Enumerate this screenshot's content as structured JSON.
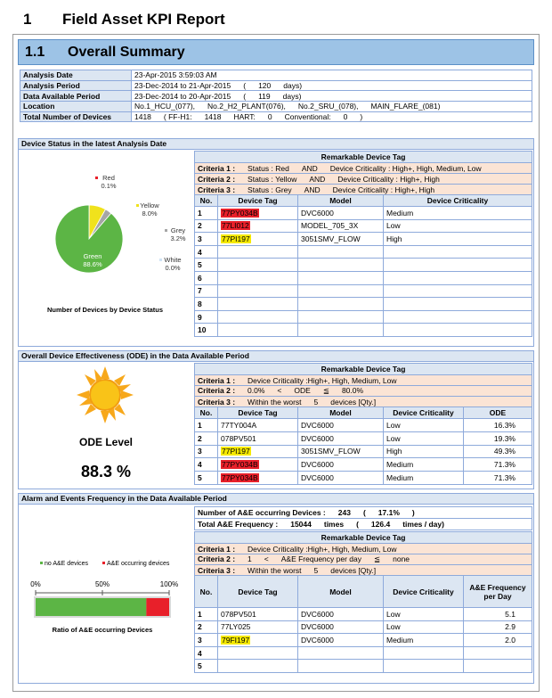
{
  "header": {
    "number": "1",
    "title": "Field Asset KPI Report"
  },
  "section": {
    "number": "1.1",
    "title": "Overall Summary"
  },
  "summary": {
    "rows": [
      [
        "Analysis Date",
        "23-Apr-2015 3:59:03 AM"
      ],
      [
        "Analysis Period",
        "23-Dec-2014 to 21-Apr-2015",
        "(",
        "120",
        "days)"
      ],
      [
        "Data Available Period",
        "23-Dec-2014 to 20-Apr-2015",
        "(",
        "119",
        "days)"
      ],
      [
        "Location",
        "No.1_HCU_(077),",
        "No.2_H2_PLANT(076),",
        "No.2_SRU_(078),",
        "MAIN_FLARE_(081)"
      ],
      [
        "Total Number of Devices",
        "1418",
        "( FF-H1:",
        "1418",
        "HART:",
        "0",
        "Conventional:",
        "0",
        ")"
      ]
    ]
  },
  "device_status": {
    "title": "Device Status in the latest Analysis Date",
    "remarkable": {
      "heading": "Remarkable Device Tag",
      "criteria": [
        [
          "Criteria 1 :",
          "Status : Red",
          "AND",
          "Device Criticality : High+, High, Medium, Low"
        ],
        [
          "Criteria 2 :",
          "Status : Yellow",
          "AND",
          "Device Criticality : High+, High"
        ],
        [
          "Criteria 3 :",
          "Status : Grey",
          "AND",
          "Device Criticality : High+, High"
        ]
      ],
      "columns": [
        "No.",
        "Device Tag",
        "Model",
        "Device Criticality"
      ],
      "rows": [
        [
          "1",
          "77PY034B",
          "DVC6000",
          "Medium"
        ],
        [
          "2",
          "77LI012",
          "MODEL_705_3X",
          "Low"
        ],
        [
          "3",
          "77PI197",
          "3051SMV_FLOW",
          "High"
        ],
        [
          "4"
        ],
        [
          "5"
        ],
        [
          "6"
        ],
        [
          "7"
        ],
        [
          "8"
        ],
        [
          "9"
        ],
        [
          "10"
        ]
      ],
      "tag_colors": [
        "#e8202a",
        "#e8202a",
        "#f5e900"
      ]
    }
  },
  "ode": {
    "title": "Overall Device Effectiveness (ODE) in the Data Available Period",
    "level_label": "ODE Level",
    "level_value": "88.3 %",
    "remarkable": {
      "heading": "Remarkable Device Tag",
      "criteria": [
        [
          "Criteria 1 :",
          "Device Criticality :High+, High, Medium, Low"
        ],
        [
          "Criteria 2 :",
          "0.0%",
          "<",
          "ODE",
          "≦",
          "80.0%"
        ],
        [
          "Criteria 3 :",
          "Within the worst",
          "5",
          "devices [Qty.]"
        ]
      ],
      "columns": [
        "No.",
        "Device Tag",
        "Model",
        "Device Criticality",
        "ODE"
      ],
      "rows": [
        [
          "1",
          "77TY004A",
          "DVC6000",
          "Low",
          "16.3%"
        ],
        [
          "2",
          "078PV501",
          "DVC6000",
          "Low",
          "19.3%"
        ],
        [
          "3",
          "77PI197",
          "3051SMV_FLOW",
          "High",
          "49.3%"
        ],
        [
          "4",
          "77PY034B",
          "DVC6000",
          "Medium",
          "71.3%"
        ],
        [
          "5",
          "77PY034B",
          "DVC6000",
          "Medium",
          "71.3%"
        ]
      ],
      "tag_colors": [
        null,
        null,
        "#f5e900",
        "#e8202a",
        "#e8202a"
      ]
    }
  },
  "alarm": {
    "title": "Alarm and Events Frequency in the Data Available Period",
    "info": [
      [
        "Number of A&E occurring Devices :",
        "243",
        "(",
        "17.1%",
        ")"
      ],
      [
        "Total A&E Frequency :",
        "15044",
        "times",
        "(",
        "126.4",
        "times / day)"
      ]
    ],
    "remarkable": {
      "heading": "Remarkable Device Tag",
      "criteria": [
        [
          "Criteria 1 :",
          "Device Criticality :High+, High, Medium, Low"
        ],
        [
          "Criteria 2 :",
          "1",
          "<",
          "A&E Frequency per day",
          "≦",
          "none"
        ],
        [
          "Criteria 3 :",
          "Within the worst",
          "5",
          "devices [Qty.]"
        ]
      ],
      "columns": [
        "No.",
        "Device Tag",
        "Model",
        "Device Criticality",
        "A&E Frequency per Day"
      ],
      "rows": [
        [
          "1",
          "078PV501",
          "DVC6000",
          "Low",
          "5.1"
        ],
        [
          "2",
          "77LY025",
          "DVC6000",
          "Low",
          "2.9"
        ],
        [
          "3",
          "79FI197",
          "DVC6000",
          "Medium",
          "2.0"
        ],
        [
          "4"
        ],
        [
          "5"
        ]
      ],
      "tag_colors": [
        null,
        null,
        "#f5e900"
      ]
    }
  },
  "chart_data": [
    {
      "type": "pie",
      "title": "Number of Devices by Device Status",
      "categories": [
        "Red",
        "Yellow",
        "Grey",
        "Green",
        "White"
      ],
      "values": [
        0.1,
        8.0,
        3.2,
        88.6,
        0.0
      ],
      "value_labels": [
        "0.1%",
        "8.0%",
        "3.2%",
        "88.6%",
        "0.0%"
      ],
      "colors": [
        "#e8202a",
        "#f0e21c",
        "#a6a6a6",
        "#5cb545",
        "#ffffff"
      ]
    },
    {
      "type": "bar",
      "title": "Ratio of A&E occurring Devices",
      "orientation": "horizontal",
      "stacked": true,
      "categories": [
        null
      ],
      "series": [
        {
          "name": "no A&E devices",
          "color": "#5cb545",
          "values": [
            82.9
          ]
        },
        {
          "name": "A&E occurring devices",
          "color": "#e8202a",
          "values": [
            17.1
          ]
        }
      ],
      "xlim": [
        0,
        100
      ],
      "xticks": [
        {
          "value": 0,
          "label": "0%"
        },
        {
          "value": 50,
          "label": "50%"
        },
        {
          "value": 100,
          "label": "100%"
        }
      ]
    }
  ]
}
